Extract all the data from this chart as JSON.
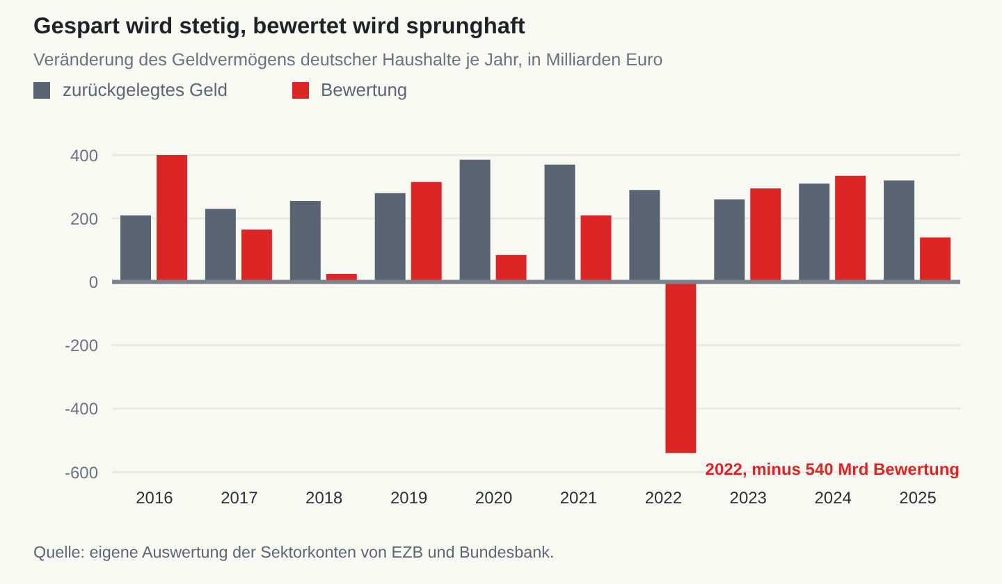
{
  "chart_data": {
    "type": "bar",
    "title": "Gespart wird stetig, bewertet wird sprunghaft",
    "subtitle": "Veränderung des Geldvermögens deutscher Haushalte je Jahr, in Milliarden Euro",
    "categories": [
      "2016",
      "2017",
      "2018",
      "2019",
      "2020",
      "2021",
      "2022",
      "2023",
      "2024",
      "2025"
    ],
    "series": [
      {
        "name": "zurückgelegtes Geld",
        "color": "#5b6472",
        "values": [
          210,
          230,
          255,
          280,
          385,
          370,
          290,
          260,
          310,
          320
        ]
      },
      {
        "name": "Bewertung",
        "color": "#dc2626",
        "values": [
          400,
          165,
          25,
          315,
          85,
          210,
          -540,
          295,
          335,
          140
        ]
      }
    ],
    "ylim": [
      -600,
      400
    ],
    "yticks": [
      -600,
      -400,
      -200,
      0,
      200,
      400
    ],
    "grid": "y",
    "legend": "top left",
    "annotations": [
      "2022, minus 540 Mrd Bewertung",
      "Quelle: eigene Auswertung der Sektorkonten von EZB und Bundesbank."
    ]
  }
}
